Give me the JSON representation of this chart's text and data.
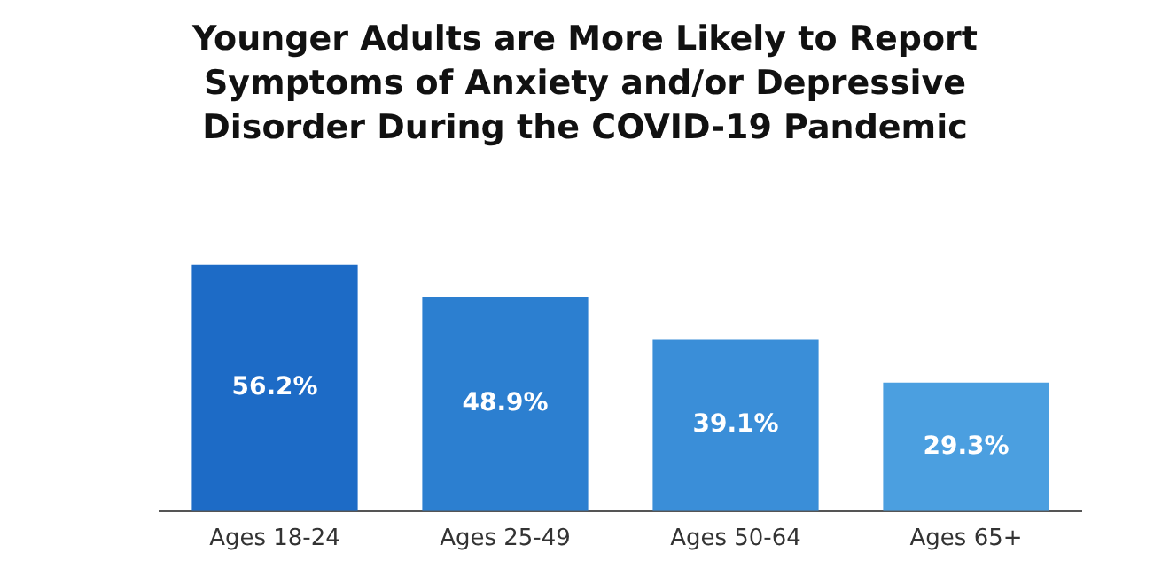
{
  "chart_data": {
    "type": "bar",
    "title": "Younger Adults are More Likely to Report Symptoms of Anxiety and/or Depressive Disorder During the COVID-19 Pandemic",
    "categories": [
      "Ages 18-24",
      "Ages 25-49",
      "Ages 50-64",
      "Ages 65+"
    ],
    "values": [
      56.2,
      48.9,
      39.1,
      29.3
    ],
    "colors": [
      "#1d6bc6",
      "#2c7fd0",
      "#3a8ed8",
      "#4b9fe0"
    ],
    "value_labels": [
      "56.2%",
      "48.9%",
      "39.1%",
      "29.3%"
    ],
    "grid": false,
    "legend": false
  }
}
